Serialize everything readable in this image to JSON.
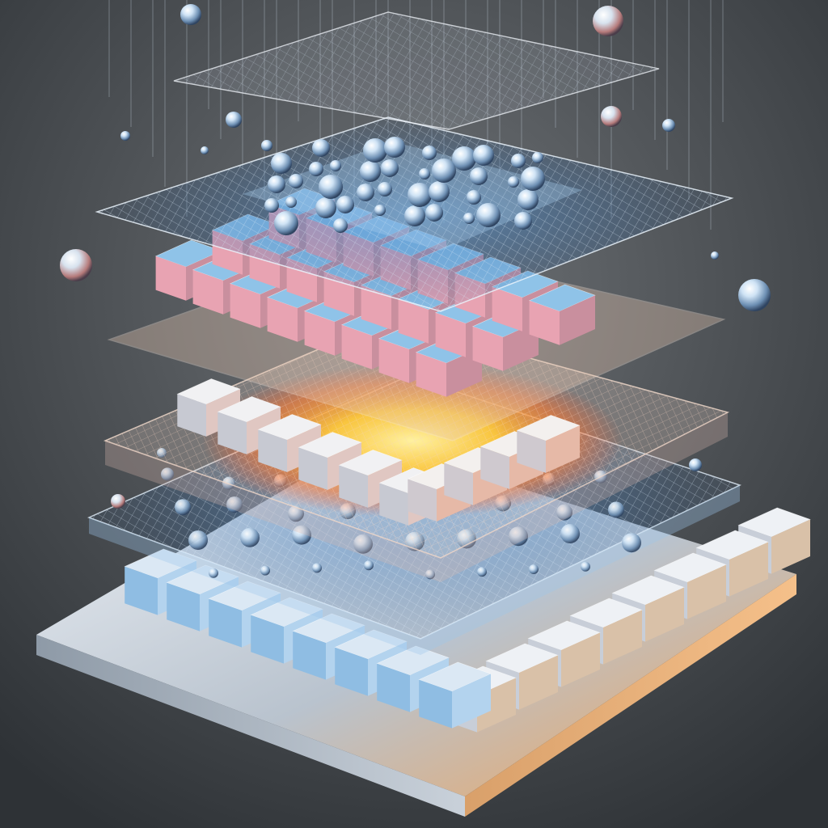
{
  "scene": {
    "subject": "exploded-layer-stack",
    "colors": {
      "background_top": "#6f7377",
      "background_bottom": "#2e3236",
      "metal_light": "#dfe6ee",
      "metal_mid": "#a8b4c2",
      "metal_dark": "#5c6875",
      "cube_blue": "#8fc3e8",
      "cube_pink": "#e8a3b2",
      "cube_silver": "#c9ced6",
      "glow_core": "#ffd84a",
      "glow_edge": "#ff7a2e",
      "mesh_blue": "#7fb8ea",
      "droplet": "#b8d6f2"
    }
  }
}
